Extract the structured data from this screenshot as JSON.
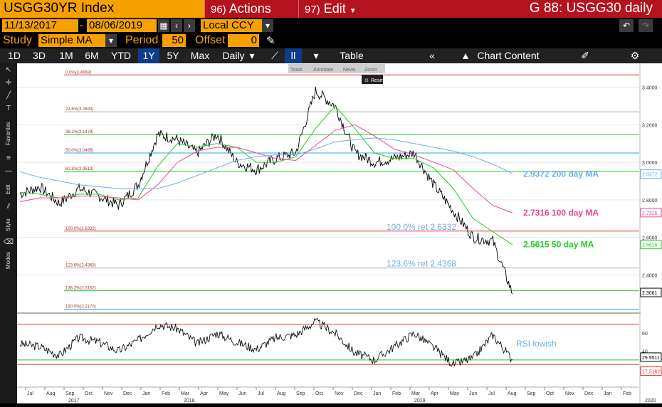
{
  "header": {
    "ticker": "USGG30YR Index",
    "actions": {
      "num": "96)",
      "label": "Actions"
    },
    "edit": {
      "num": "97)",
      "label": "Edit"
    },
    "screen_title": "G 88: USGG30 daily"
  },
  "dates": {
    "start": "11/13/2017",
    "sep": "-",
    "end": "08/06/2019",
    "currency": "Local CCY"
  },
  "study": {
    "label": "Study",
    "value": "Simple MA",
    "period_label": "Period",
    "period": "50",
    "offset_label": "Offset",
    "offset": "0"
  },
  "periods": [
    "1D",
    "3D",
    "1M",
    "6M",
    "YTD",
    "1Y",
    "5Y",
    "Max"
  ],
  "active_period": "1Y",
  "frequency": "Daily",
  "toolbar": {
    "table": "Table",
    "chart_content": "Chart Content"
  },
  "tool_menu": [
    "Track",
    "Annotate",
    "News",
    "Zoom"
  ],
  "reset": "Reset",
  "left_tab_labels": [
    "Favorites",
    "Edit",
    "Style",
    "Modes"
  ],
  "chart_data": {
    "type": "line",
    "title": "",
    "xlabel": "",
    "ylabel": "",
    "x": [
      "Jul 2017",
      "Aug 2017",
      "Sep 2017",
      "Oct 2017",
      "Nov 2017",
      "Dec 2017",
      "Jan 2018",
      "Feb 2018",
      "Mar 2018",
      "Apr 2018",
      "May 2018",
      "Jun 2018",
      "Jul 2018",
      "Aug 2018",
      "Sep 2018",
      "Oct 2018",
      "Nov 2018",
      "Dec 2018",
      "Jan 2019",
      "Feb 2019",
      "Mar 2019",
      "Apr 2019",
      "May 2019",
      "Jun 2019",
      "Jul 2019",
      "Aug 2019"
    ],
    "x_tick_labels": [
      "Jul",
      "Aug",
      "Sep",
      "Oct",
      "Nov",
      "Dec",
      "Jan",
      "Feb",
      "Mar",
      "Apr",
      "May",
      "Jun",
      "Jul",
      "Aug",
      "Sep",
      "Oct",
      "Nov",
      "Dec",
      "Jan",
      "Feb",
      "Mar",
      "Apr",
      "May",
      "Jun",
      "Jul",
      "Aug",
      "Sep",
      "Oct",
      "Nov",
      "Dec",
      "Jan",
      "Feb"
    ],
    "year_labels": [
      "2017",
      "2018",
      "2019",
      "2020"
    ],
    "ylim": [
      2.2,
      3.52
    ],
    "y_ticks": [
      2.4,
      2.6,
      2.8,
      3.0,
      3.2,
      3.4
    ],
    "y_tick_labels": [
      "2.4000",
      "2.6000",
      "2.8000",
      "3.0000",
      "3.2000",
      "3.4000"
    ],
    "series": [
      {
        "name": "USGG30YR",
        "color": "#000000",
        "values": [
          2.83,
          2.87,
          2.78,
          2.86,
          2.82,
          2.77,
          2.88,
          3.15,
          3.12,
          3.05,
          3.15,
          3.0,
          2.96,
          3.02,
          3.05,
          3.38,
          3.3,
          3.05,
          3.0,
          3.02,
          3.05,
          2.88,
          2.74,
          2.6,
          2.58,
          2.3
        ]
      },
      {
        "name": "50 day MA",
        "color": "#22cc22",
        "values": [
          2.84,
          2.83,
          2.81,
          2.83,
          2.83,
          2.8,
          2.81,
          2.98,
          3.1,
          3.08,
          3.1,
          3.08,
          3.0,
          3.0,
          3.03,
          3.18,
          3.3,
          3.18,
          3.05,
          3.02,
          3.02,
          2.97,
          2.86,
          2.7,
          2.63,
          2.56
        ]
      },
      {
        "name": "100 day MA",
        "color": "#ee4499",
        "values": [
          2.79,
          2.81,
          2.81,
          2.82,
          2.82,
          2.81,
          2.8,
          2.88,
          3.0,
          3.06,
          3.08,
          3.08,
          3.05,
          3.02,
          3.01,
          3.09,
          3.17,
          3.2,
          3.14,
          3.07,
          3.04,
          3.0,
          2.96,
          2.86,
          2.77,
          2.73
        ]
      },
      {
        "name": "200 day MA",
        "color": "#6aaeea",
        "values": [
          2.95,
          2.92,
          2.9,
          2.88,
          2.87,
          2.86,
          2.86,
          2.86,
          2.89,
          2.93,
          2.97,
          3.01,
          3.03,
          3.04,
          3.04,
          3.07,
          3.11,
          3.12,
          3.13,
          3.12,
          3.1,
          3.08,
          3.06,
          3.03,
          2.99,
          2.94
        ]
      }
    ],
    "rsi": {
      "ylim": [
        10,
        80
      ],
      "ticks": [
        20,
        40,
        60
      ],
      "upper": 70,
      "lower": 30,
      "values": [
        48,
        45,
        35,
        55,
        50,
        40,
        52,
        70,
        65,
        48,
        60,
        50,
        42,
        55,
        58,
        73,
        60,
        38,
        30,
        45,
        60,
        44,
        25,
        32,
        58,
        30
      ]
    },
    "fibonacci": [
      {
        "label": "0.0%(3.4658)",
        "value": 3.4658,
        "color": "#e03030"
      },
      {
        "label": "23.6%(3.2693)",
        "value": 3.2693,
        "color": "#aaaaaa"
      },
      {
        "label": "38.2%(3.1478)",
        "value": 3.1478,
        "color": "#22cc22"
      },
      {
        "label": "50.0%(3.0495)",
        "value": 3.0495,
        "color": "#2aa8e0"
      },
      {
        "label": "61.8%(2.9513)",
        "value": 2.9513,
        "color": "#22cc22"
      },
      {
        "label": "100.0%(2.6332)",
        "value": 2.6332,
        "color": "#e03030"
      },
      {
        "label": "123.6%(2.4368)",
        "value": 2.4368,
        "color": "#aaaaaa"
      },
      {
        "label": "138.2%(2.3152)",
        "value": 2.3152,
        "color": "#22cc22"
      },
      {
        "label": "150.0%(2.2170)",
        "value": 2.217,
        "color": "#2aa8e0"
      }
    ],
    "annotations": [
      {
        "text": "2.9372 200 day MA",
        "color": "#6aaeea"
      },
      {
        "text": "2.7316 100 day MA",
        "color": "#ee4499"
      },
      {
        "text": "2.5615 50 day  MA",
        "color": "#22cc22"
      },
      {
        "text": "100.0% ret 2.6332",
        "color": "#6aaeea"
      },
      {
        "text": "123.6% ret 2.4368",
        "color": "#6aaeea"
      },
      {
        "text": "RSI lowish",
        "color": "#6aaeea"
      }
    ],
    "last_value_labels": [
      {
        "text": "2.9372",
        "color": "#6aaeea"
      },
      {
        "text": "2.7316",
        "color": "#ee4499"
      },
      {
        "text": "2.5616",
        "color": "#22cc22"
      },
      {
        "text": "2.3061",
        "color": "#000000"
      },
      {
        "text": "29.9511",
        "color": "#000000"
      },
      {
        "text": "17.5162",
        "color": "#e03030"
      }
    ]
  }
}
